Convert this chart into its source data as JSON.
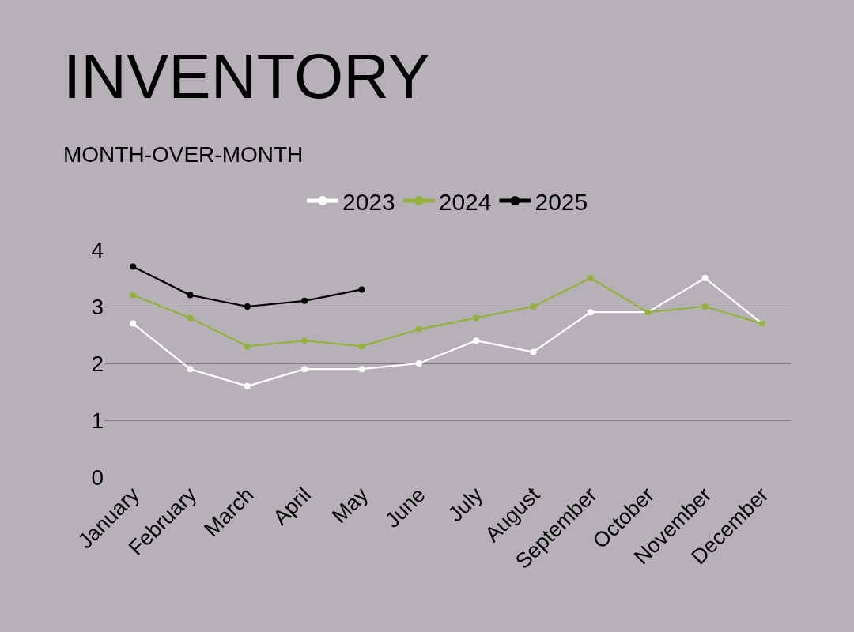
{
  "chart_data": {
    "type": "line",
    "title": "INVENTORY",
    "subtitle": "MONTH-OVER-MONTH",
    "categories": [
      "January",
      "February",
      "March",
      "April",
      "May",
      "June",
      "July",
      "August",
      "September",
      "October",
      "November",
      "December"
    ],
    "series": [
      {
        "name": "2023",
        "color": "#ffffff",
        "values": [
          2.7,
          1.9,
          1.6,
          1.9,
          1.9,
          2.0,
          2.4,
          2.2,
          2.9,
          2.9,
          3.5,
          2.7
        ]
      },
      {
        "name": "2024",
        "color": "#93b13c",
        "values": [
          3.2,
          2.8,
          2.3,
          2.4,
          2.3,
          2.6,
          2.8,
          3.0,
          3.5,
          2.9,
          3.0,
          2.7
        ]
      },
      {
        "name": "2025",
        "color": "#000000",
        "values": [
          3.7,
          3.2,
          3.0,
          3.1,
          3.3,
          null,
          null,
          null,
          null,
          null,
          null,
          null
        ]
      }
    ],
    "ylim": [
      0,
      4
    ],
    "yticks": [
      0,
      1,
      2,
      3,
      4
    ],
    "grid": "y",
    "legend": "top",
    "marker": "circle",
    "line_style": "solid"
  }
}
